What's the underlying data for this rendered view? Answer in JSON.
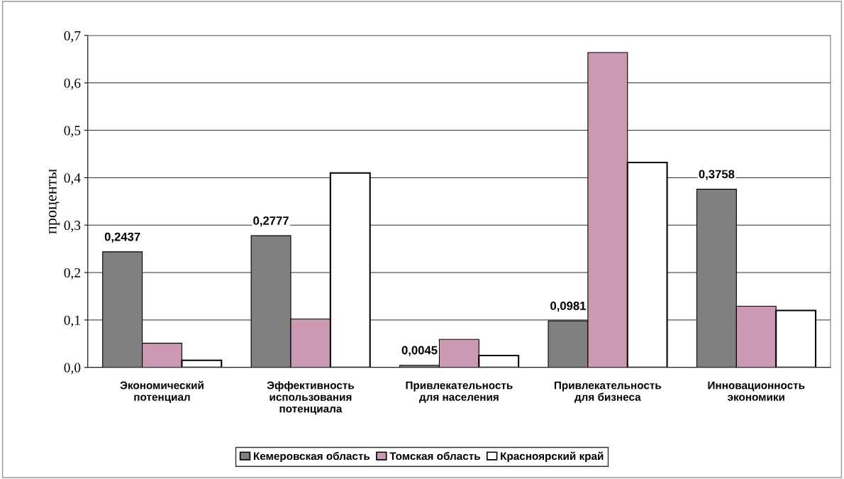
{
  "chart_data": {
    "type": "bar",
    "ylabel": "проценты",
    "categories": [
      "Экономический\nпотенциал",
      "Эффективность\nиспользования\nпотенциала",
      "Привлекательность\nдля населения",
      "Привлекательность\nдля бизнеса",
      "Инновационность\nэкономики"
    ],
    "series": [
      {
        "name": "Кемеровская область",
        "color": "#808080",
        "values": [
          0.2437,
          0.2777,
          0.0045,
          0.0981,
          0.3758
        ],
        "value_labels": [
          "0,2437",
          "0,2777",
          "0,0045",
          "0,0981",
          "0,3758"
        ]
      },
      {
        "name": "Томская область",
        "color": "#cc99b3",
        "values": [
          0.051,
          0.102,
          0.059,
          0.664,
          0.129
        ]
      },
      {
        "name": "Красноярский край",
        "color": "#ffffff",
        "values": [
          0.015,
          0.41,
          0.025,
          0.432,
          0.12
        ]
      }
    ],
    "ylim": [
      0,
      0.7
    ],
    "yticks": [
      {
        "value": 0,
        "label": "0,0"
      },
      {
        "value": 0.1,
        "label": "0,1"
      },
      {
        "value": 0.2,
        "label": "0,2"
      },
      {
        "value": 0.3,
        "label": "0,3"
      },
      {
        "value": 0.4,
        "label": "0,4"
      },
      {
        "value": 0.5,
        "label": "0,5"
      },
      {
        "value": 0.6,
        "label": "0,6"
      },
      {
        "value": 0.7,
        "label": "0,7"
      }
    ],
    "grid": "y",
    "legend": "bottom"
  }
}
